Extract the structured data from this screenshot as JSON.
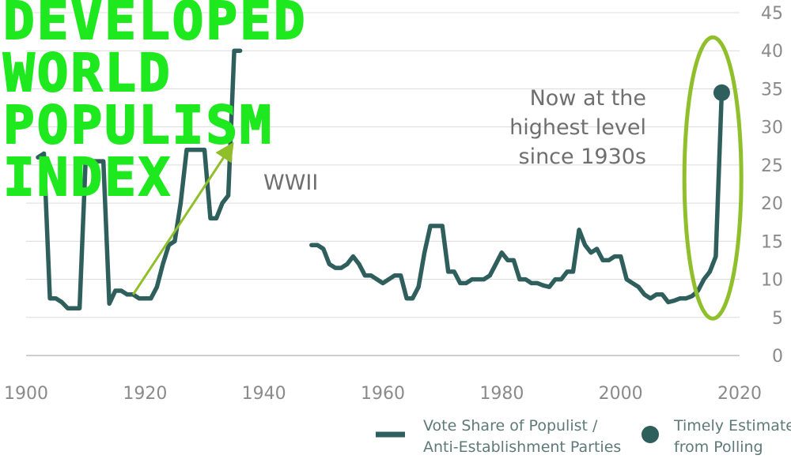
{
  "chart_data": {
    "type": "line",
    "title_lines": [
      "DEVELOPED",
      "WORLD",
      "POPULISM",
      "INDEX"
    ],
    "xlim": [
      1900,
      2020
    ],
    "ylim": [
      0,
      45
    ],
    "x_ticks": [
      "1900",
      "1920",
      "1940",
      "1960",
      "1980",
      "2000",
      "2020"
    ],
    "y_ticks": [
      "0",
      "5",
      "10",
      "15",
      "20",
      "25",
      "30",
      "35",
      "40",
      "45"
    ],
    "y_axis_side": "right",
    "grid": "horizontal",
    "colors": {
      "series": "#2f5f5c",
      "highlight": "#8fbf2a",
      "arrow": "#8fbf2a",
      "title": "#1ee81e"
    },
    "series": [
      {
        "name": "Vote Share of Populist / Anti-Establishment Parties",
        "segments": [
          [
            [
              1902,
              26
            ],
            [
              1903,
              26.5
            ],
            [
              1904,
              7.5
            ],
            [
              1905,
              7.5
            ],
            [
              1906,
              7
            ],
            [
              1907,
              6.2
            ],
            [
              1908,
              6.2
            ],
            [
              1909,
              6.2
            ],
            [
              1910,
              25.5
            ],
            [
              1911,
              25.5
            ],
            [
              1912,
              25.5
            ],
            [
              1913,
              25.5
            ],
            [
              1914,
              6.8
            ],
            [
              1915,
              8.5
            ],
            [
              1916,
              8.5
            ],
            [
              1917,
              8
            ],
            [
              1918,
              8
            ],
            [
              1919,
              7.5
            ],
            [
              1920,
              7.5
            ],
            [
              1921,
              7.5
            ],
            [
              1922,
              9
            ],
            [
              1923,
              12
            ],
            [
              1924,
              14.5
            ],
            [
              1925,
              15
            ],
            [
              1926,
              20
            ],
            [
              1927,
              27
            ],
            [
              1928,
              27
            ],
            [
              1929,
              27
            ],
            [
              1930,
              27
            ],
            [
              1931,
              18
            ],
            [
              1932,
              18
            ],
            [
              1933,
              20
            ],
            [
              1934,
              21
            ],
            [
              1935,
              40
            ],
            [
              1936,
              40
            ]
          ],
          [
            [
              1948,
              14.5
            ],
            [
              1949,
              14.5
            ],
            [
              1950,
              14
            ],
            [
              1951,
              12
            ],
            [
              1952,
              11.5
            ],
            [
              1953,
              11.5
            ],
            [
              1954,
              12
            ],
            [
              1955,
              13
            ],
            [
              1956,
              12
            ],
            [
              1957,
              10.5
            ],
            [
              1958,
              10.5
            ],
            [
              1959,
              10
            ],
            [
              1960,
              9.5
            ],
            [
              1961,
              10
            ],
            [
              1962,
              10.5
            ],
            [
              1963,
              10.5
            ],
            [
              1964,
              7.5
            ],
            [
              1965,
              7.5
            ],
            [
              1966,
              9
            ],
            [
              1967,
              13.5
            ],
            [
              1968,
              17
            ],
            [
              1969,
              17
            ],
            [
              1970,
              17
            ],
            [
              1971,
              11
            ],
            [
              1972,
              11
            ],
            [
              1973,
              9.5
            ],
            [
              1974,
              9.5
            ],
            [
              1975,
              10
            ],
            [
              1976,
              10
            ],
            [
              1977,
              10
            ],
            [
              1978,
              10.5
            ],
            [
              1979,
              12
            ],
            [
              1980,
              13.5
            ],
            [
              1981,
              12.5
            ],
            [
              1982,
              12.5
            ],
            [
              1983,
              10
            ],
            [
              1984,
              10
            ],
            [
              1985,
              9.5
            ],
            [
              1986,
              9.5
            ],
            [
              1987,
              9.2
            ],
            [
              1988,
              9
            ],
            [
              1989,
              10
            ],
            [
              1990,
              10
            ],
            [
              1991,
              11
            ],
            [
              1992,
              11
            ],
            [
              1993,
              16.5
            ],
            [
              1994,
              14.5
            ],
            [
              1995,
              13.5
            ],
            [
              1996,
              14
            ],
            [
              1997,
              12.5
            ],
            [
              1998,
              12.5
            ],
            [
              1999,
              13
            ],
            [
              2000,
              13
            ],
            [
              2001,
              10
            ],
            [
              2002,
              9.5
            ],
            [
              2003,
              9
            ],
            [
              2004,
              8
            ],
            [
              2005,
              7.5
            ],
            [
              2006,
              8
            ],
            [
              2007,
              8
            ],
            [
              2008,
              7
            ],
            [
              2009,
              7.2
            ],
            [
              2010,
              7.5
            ],
            [
              2011,
              7.5
            ],
            [
              2012,
              7.8
            ],
            [
              2013,
              8.5
            ],
            [
              2014,
              10
            ],
            [
              2015,
              11
            ],
            [
              2016,
              13
            ],
            [
              2017,
              34.5
            ]
          ]
        ]
      },
      {
        "name": "Timely Estimate from Polling",
        "points": [
          [
            2017,
            34.5
          ]
        ]
      }
    ],
    "annotations": [
      {
        "id": "wwii",
        "text": "WWII"
      },
      {
        "id": "now",
        "lines": [
          "Now at the",
          "highest level",
          "since 1930s"
        ]
      }
    ],
    "legend": {
      "placement": "bottom-right",
      "items": [
        {
          "lines": [
            "Vote Share of Populist /",
            "Anti-Establishment Parties"
          ],
          "marker": "line"
        },
        {
          "lines": [
            "Timely Estimate",
            "from Polling"
          ],
          "marker": "dot"
        }
      ]
    }
  }
}
